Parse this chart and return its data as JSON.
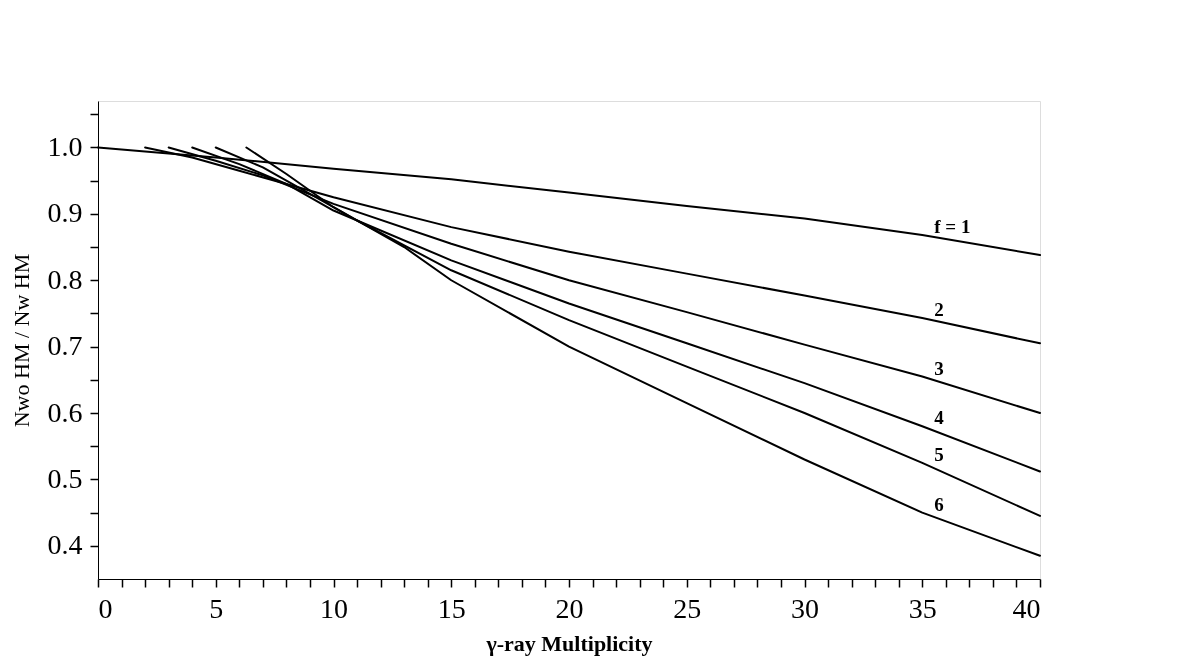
{
  "chart_data": {
    "type": "line",
    "xlabel": "γ-ray Multiplicity",
    "ylabel": "Nwo HM / Nw HM",
    "xlim": [
      0,
      40
    ],
    "ylim": [
      0.35,
      1.07
    ],
    "xticks": [
      0,
      {
        "value": 1,
        "label": null
      },
      {
        "value": 2,
        "label": null
      },
      {
        "value": 3,
        "label": null
      },
      {
        "value": 4,
        "label": null
      },
      5,
      {
        "value": 6,
        "label": null
      },
      {
        "value": 7,
        "label": null
      },
      {
        "value": 8,
        "label": null
      },
      {
        "value": 9,
        "label": null
      },
      10,
      {
        "value": 11,
        "label": null
      },
      {
        "value": 12,
        "label": null
      },
      {
        "value": 13,
        "label": null
      },
      {
        "value": 14,
        "label": null
      },
      15,
      {
        "value": 16,
        "label": null
      },
      {
        "value": 17,
        "label": null
      },
      {
        "value": 18,
        "label": null
      },
      {
        "value": 19,
        "label": null
      },
      20,
      {
        "value": 21,
        "label": null
      },
      {
        "value": 22,
        "label": null
      },
      {
        "value": 23,
        "label": null
      },
      {
        "value": 24,
        "label": null
      },
      25,
      {
        "value": 26,
        "label": null
      },
      {
        "value": 27,
        "label": null
      },
      {
        "value": 28,
        "label": null
      },
      {
        "value": 29,
        "label": null
      },
      30,
      {
        "value": 31,
        "label": null
      },
      {
        "value": 32,
        "label": null
      },
      {
        "value": 33,
        "label": null
      },
      {
        "value": 34,
        "label": null
      },
      35,
      {
        "value": 36,
        "label": null
      },
      {
        "value": 37,
        "label": null
      },
      {
        "value": 38,
        "label": null
      },
      {
        "value": 39,
        "label": null
      },
      40
    ],
    "yticks": [
      {
        "value": 0.4,
        "label": "0.4"
      },
      {
        "value": 0.45,
        "label": null
      },
      {
        "value": 0.5,
        "label": "0.5"
      },
      {
        "value": 0.55,
        "label": null
      },
      {
        "value": 0.6,
        "label": "0.6"
      },
      {
        "value": 0.65,
        "label": null
      },
      {
        "value": 0.7,
        "label": "0.7"
      },
      {
        "value": 0.75,
        "label": null
      },
      {
        "value": 0.8,
        "label": "0.8"
      },
      {
        "value": 0.85,
        "label": null
      },
      {
        "value": 0.9,
        "label": "0.9"
      },
      {
        "value": 0.95,
        "label": null
      },
      {
        "value": 1.0,
        "label": "1.0"
      },
      {
        "value": 1.05,
        "label": null
      }
    ],
    "grid": false,
    "legend": false,
    "marker": "none",
    "line_style": "solid",
    "series": [
      {
        "name": "f = 1",
        "color": "#000000",
        "x": [
          0,
          5,
          10,
          15,
          20,
          25,
          30,
          35,
          40
        ],
        "values": [
          1.0,
          0.985,
          0.968,
          0.952,
          0.932,
          0.912,
          0.893,
          0.868,
          0.838
        ]
      },
      {
        "name": "2",
        "color": "#000000",
        "x": [
          2,
          4,
          6,
          8,
          10,
          15,
          20,
          25,
          30,
          35,
          40
        ],
        "values": [
          1.0,
          0.985,
          0.965,
          0.945,
          0.925,
          0.88,
          0.843,
          0.81,
          0.777,
          0.743,
          0.705
        ]
      },
      {
        "name": "3",
        "color": "#000000",
        "x": [
          3,
          5,
          7,
          10,
          15,
          20,
          25,
          30,
          35,
          40
        ],
        "values": [
          1.0,
          0.98,
          0.958,
          0.915,
          0.855,
          0.8,
          0.752,
          0.703,
          0.655,
          0.6
        ]
      },
      {
        "name": "4",
        "color": "#000000",
        "x": [
          4,
          6,
          8,
          10,
          15,
          20,
          25,
          30,
          35,
          40
        ],
        "values": [
          1.0,
          0.975,
          0.945,
          0.905,
          0.83,
          0.765,
          0.705,
          0.645,
          0.58,
          0.512
        ]
      },
      {
        "name": "5",
        "color": "#000000",
        "x": [
          5,
          7,
          9,
          11,
          15,
          20,
          25,
          30,
          35,
          40
        ],
        "values": [
          1.0,
          0.97,
          0.93,
          0.89,
          0.815,
          0.74,
          0.67,
          0.6,
          0.525,
          0.445
        ]
      },
      {
        "name": "6",
        "color": "#000000",
        "x": [
          6.3,
          8,
          10,
          13,
          15,
          20,
          25,
          30,
          35,
          40
        ],
        "values": [
          1.0,
          0.96,
          0.91,
          0.85,
          0.8,
          0.7,
          0.615,
          0.53,
          0.45,
          0.385
        ]
      }
    ]
  }
}
